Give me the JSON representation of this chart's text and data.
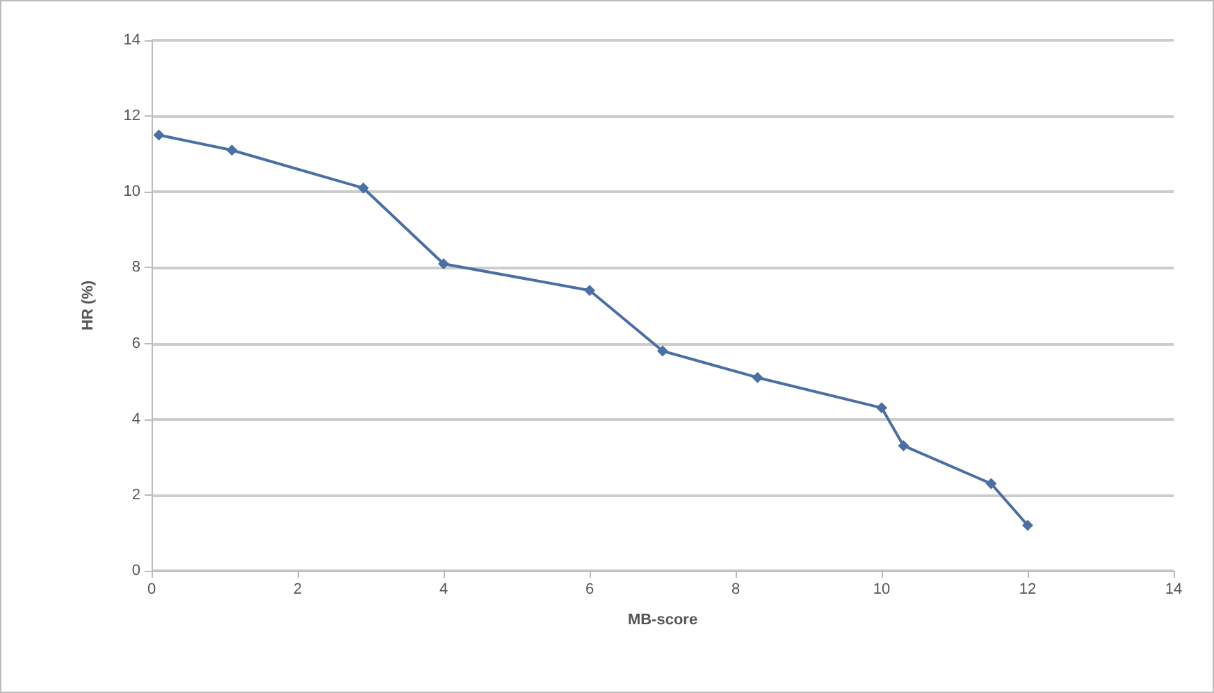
{
  "chart_data": {
    "type": "line",
    "xlabel": "MB-score",
    "ylabel": "HR (%)",
    "x": [
      0.1,
      1.1,
      2.9,
      4.0,
      6.0,
      7.0,
      8.3,
      10.0,
      10.3,
      11.5,
      12.0
    ],
    "series": [
      {
        "color": "#4a6fa5",
        "values": [
          11.5,
          11.1,
          10.1,
          8.1,
          7.4,
          5.8,
          5.1,
          4.3,
          3.3,
          2.3,
          1.2
        ]
      }
    ],
    "xlim": [
      0,
      14
    ],
    "xticks": [
      0,
      2,
      4,
      6,
      8,
      10,
      12,
      14
    ],
    "ylim": [
      0,
      14
    ],
    "yticks": [
      0,
      2,
      4,
      6,
      8,
      10,
      12,
      14
    ],
    "grid": "y",
    "marker": "diamond",
    "line_style": "solid"
  }
}
